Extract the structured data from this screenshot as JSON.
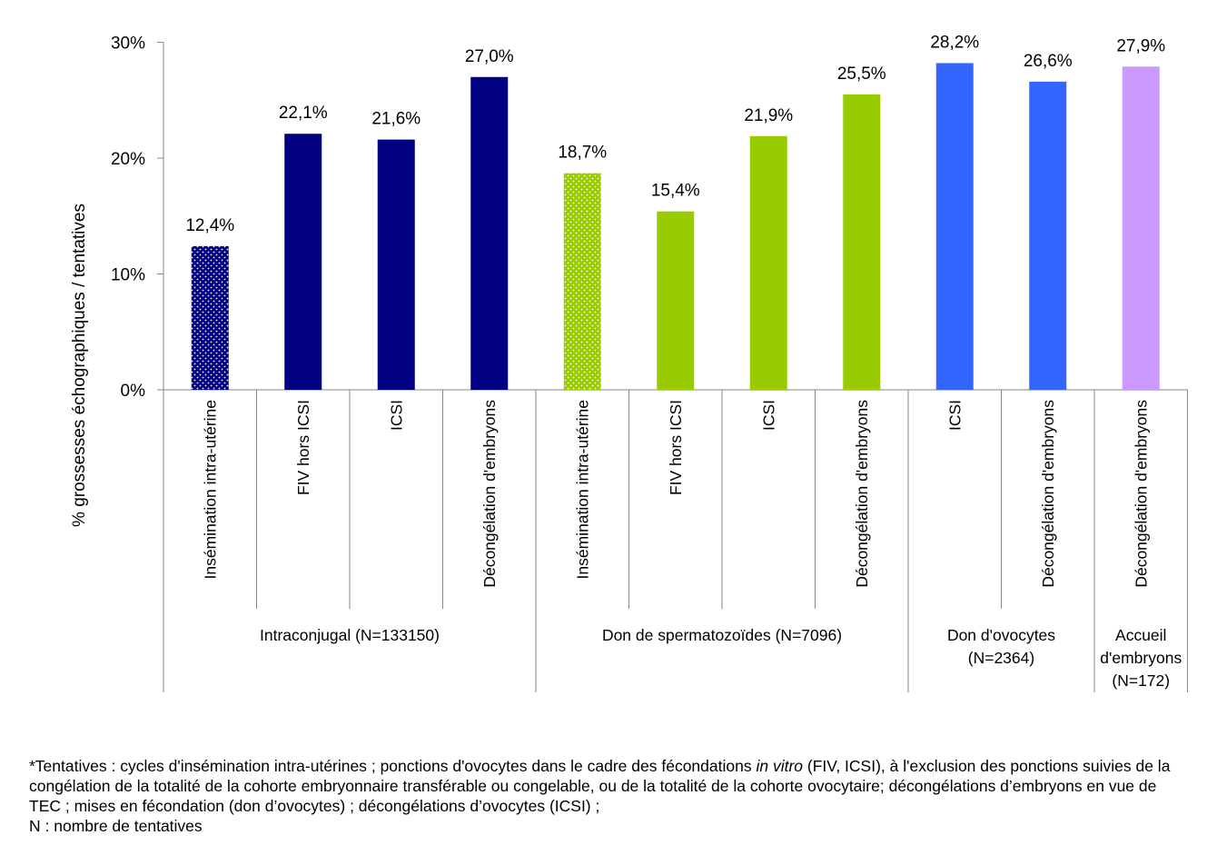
{
  "chart_data": {
    "type": "bar",
    "ylabel": "% grossesses échographiques / tentatives",
    "ylim": [
      0,
      30
    ],
    "yticks": [
      {
        "value": 0,
        "label": "0%"
      },
      {
        "value": 10,
        "label": "10%"
      },
      {
        "value": 20,
        "label": "20%"
      },
      {
        "value": 30,
        "label": "30%"
      }
    ],
    "grid": false,
    "legend": "none",
    "categories": [
      "Insémination intra-utérine",
      "FIV hors ICSI",
      "ICSI",
      "Décongélation d'embryons",
      "Insémination intra-utérine",
      "FIV hors ICSI",
      "ICSI",
      "Décongélation d'embryons",
      "ICSI",
      "Décongélation d'embryons",
      "Décongélation d'embryons"
    ],
    "values": [
      12.4,
      22.1,
      21.6,
      27.0,
      18.7,
      15.4,
      21.9,
      25.5,
      28.2,
      26.6,
      27.9
    ],
    "value_labels": [
      "12,4%",
      "22,1%",
      "21,6%",
      "27,0%",
      "18,7%",
      "15,4%",
      "21,9%",
      "25,5%",
      "28,2%",
      "26,6%",
      "27,9%"
    ],
    "bar_colors": [
      "#000080",
      "#000080",
      "#000080",
      "#000080",
      "#99CC00",
      "#99CC00",
      "#99CC00",
      "#99CC00",
      "#3366FF",
      "#3366FF",
      "#CC99FF"
    ],
    "bar_patterns": [
      "dotted",
      "solid",
      "solid",
      "solid",
      "dotted",
      "solid",
      "solid",
      "solid",
      "solid",
      "solid",
      "solid"
    ],
    "groups": [
      {
        "label_lines": [
          "Intraconjugal (N=133150)"
        ],
        "count": 4
      },
      {
        "label_lines": [
          "Don de spermatozoïdes (N=7096)"
        ],
        "count": 4
      },
      {
        "label_lines": [
          "Don d'ovocytes",
          "(N=2364)"
        ],
        "count": 2
      },
      {
        "label_lines": [
          "Accueil",
          "d'embryons",
          "(N=172)"
        ],
        "count": 1
      }
    ]
  },
  "footnote": {
    "part1": "*Tentatives : cycles d'insémination intra-utérines ; ponctions d'ovocytes dans le cadre des fécondations ",
    "italic": "in vitro",
    "part2": " (FIV, ICSI), à l'exclusion des ponctions suivies de la congélation de la totalité de la cohorte embryonnaire transférable ou congelable, ou de la totalité de la cohorte ovocytaire; décongélations d’embryons en vue de TEC ; mises en fécondation (don d’ovocytes) ; décongélations d’ovocytes (ICSI) ;",
    "line2": "N : nombre de tentatives"
  }
}
